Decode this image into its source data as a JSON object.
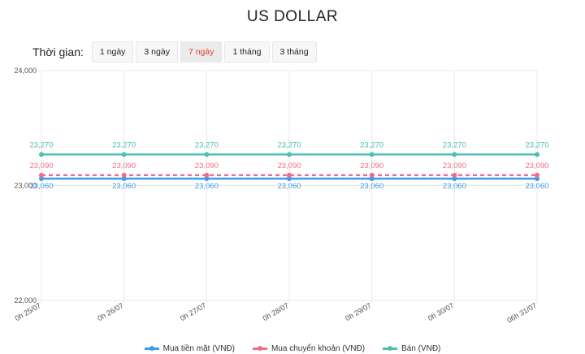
{
  "title": "US DOLLAR",
  "time_range": {
    "label": "Thời gian:",
    "options": [
      "1 ngày",
      "3 ngày",
      "7 ngày",
      "1 tháng",
      "3 tháng"
    ],
    "selected": "7 ngày"
  },
  "colors": {
    "mua_tien_mat": "#3d9be9",
    "mua_chuyen_khoan": "#f26b8a",
    "ban": "#4cbfb6",
    "grid": "#e8e8e8",
    "active_button_text": "#e0442b"
  },
  "chart_data": {
    "type": "line",
    "title": "US DOLLAR",
    "xlabel": "",
    "ylabel": "",
    "ylim": [
      22000,
      24000
    ],
    "yticks": [
      "24,000",
      "23,000",
      "22,000"
    ],
    "categories": [
      "0h 25/07",
      "0h 26/07",
      "0h 27/07",
      "0h 28/07",
      "0h 29/07",
      "0h 30/07",
      "06h 31/07"
    ],
    "series": [
      {
        "name": "Mua tiền mặt (VNĐ)",
        "values": [
          23060,
          23060,
          23060,
          23060,
          23060,
          23060,
          23060
        ],
        "labels": [
          "23,060",
          "23,060",
          "23,060",
          "23,060",
          "23,060",
          "23,060",
          "23,060"
        ],
        "style": "solid"
      },
      {
        "name": "Mua chuyển khoản (VNĐ)",
        "values": [
          23090,
          23090,
          23090,
          23090,
          23090,
          23090,
          23090
        ],
        "labels": [
          "23,090",
          "23,090",
          "23,090",
          "23,090",
          "23,090",
          "23,090",
          "23,090"
        ],
        "style": "dashed"
      },
      {
        "name": "Bán (VNĐ)",
        "values": [
          23270,
          23270,
          23270,
          23270,
          23270,
          23270,
          23270
        ],
        "labels": [
          "23,270",
          "23,270",
          "23,270",
          "23,270",
          "23,270",
          "23,270",
          "23,270"
        ],
        "style": "solid"
      }
    ],
    "grid": true,
    "legend_position": "bottom"
  }
}
